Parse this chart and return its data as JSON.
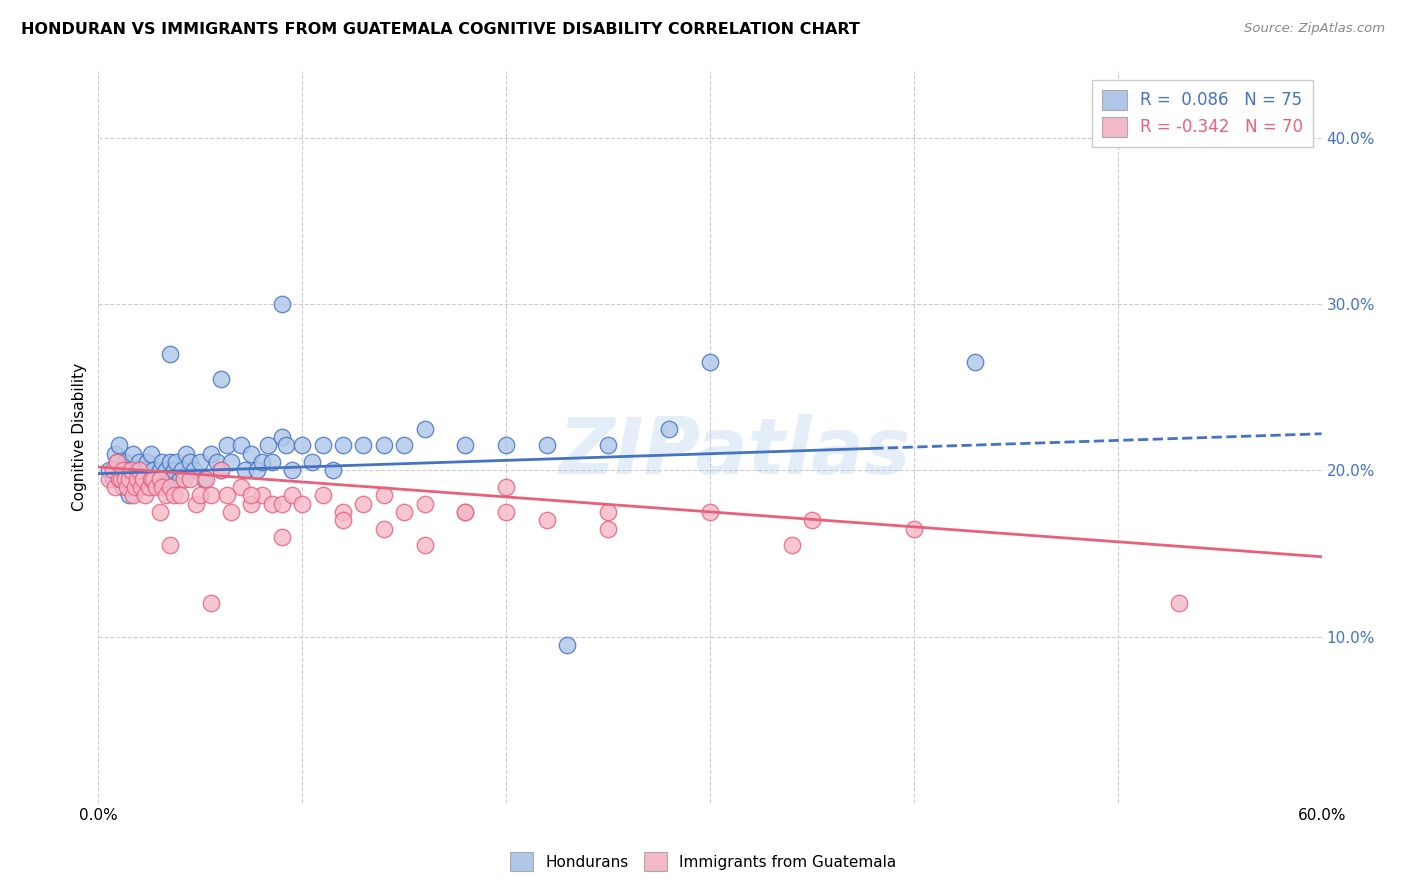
{
  "title": "HONDURAN VS IMMIGRANTS FROM GUATEMALA COGNITIVE DISABILITY CORRELATION CHART",
  "source": "Source: ZipAtlas.com",
  "ylabel": "Cognitive Disability",
  "xlim": [
    0.0,
    0.6
  ],
  "ylim": [
    0.0,
    0.44
  ],
  "xticks": [
    0.0,
    0.1,
    0.2,
    0.3,
    0.4,
    0.5,
    0.6
  ],
  "xticklabels": [
    "0.0%",
    "",
    "",
    "",
    "",
    "",
    "60.0%"
  ],
  "yticks": [
    0.1,
    0.2,
    0.3,
    0.4
  ],
  "yticklabels": [
    "10.0%",
    "20.0%",
    "30.0%",
    "40.0%"
  ],
  "blue_R": 0.086,
  "blue_N": 75,
  "pink_R": -0.342,
  "pink_N": 70,
  "blue_color": "#aec6e8",
  "pink_color": "#f4b8c8",
  "blue_line_color": "#4472C4",
  "pink_line_color": "#E8607A",
  "background_color": "#ffffff",
  "grid_color": "#cccccc",
  "watermark": "ZIPatlas",
  "legend_label_blue": "Hondurans",
  "legend_label_pink": "Immigrants from Guatemala",
  "blue_trend_x0": 0.0,
  "blue_trend_y0": 0.198,
  "blue_trend_x1": 0.6,
  "blue_trend_y1": 0.222,
  "blue_trend_solid_end": 0.38,
  "pink_trend_x0": 0.0,
  "pink_trend_y0": 0.202,
  "pink_trend_x1": 0.6,
  "pink_trend_y1": 0.148,
  "blue_scatter_x": [
    0.005,
    0.007,
    0.008,
    0.009,
    0.01,
    0.01,
    0.011,
    0.012,
    0.013,
    0.014,
    0.015,
    0.016,
    0.017,
    0.018,
    0.019,
    0.02,
    0.02,
    0.021,
    0.022,
    0.023,
    0.024,
    0.025,
    0.026,
    0.027,
    0.028,
    0.03,
    0.031,
    0.032,
    0.033,
    0.035,
    0.036,
    0.037,
    0.038,
    0.04,
    0.041,
    0.043,
    0.045,
    0.047,
    0.05,
    0.052,
    0.055,
    0.058,
    0.06,
    0.063,
    0.065,
    0.07,
    0.072,
    0.075,
    0.078,
    0.08,
    0.083,
    0.085,
    0.09,
    0.092,
    0.095,
    0.1,
    0.105,
    0.11,
    0.115,
    0.12,
    0.13,
    0.14,
    0.15,
    0.16,
    0.18,
    0.2,
    0.22,
    0.25,
    0.28,
    0.3,
    0.035,
    0.06,
    0.09,
    0.43,
    0.23
  ],
  "blue_scatter_y": [
    0.2,
    0.195,
    0.21,
    0.205,
    0.195,
    0.215,
    0.2,
    0.19,
    0.205,
    0.2,
    0.185,
    0.195,
    0.21,
    0.2,
    0.195,
    0.19,
    0.205,
    0.2,
    0.195,
    0.2,
    0.205,
    0.195,
    0.21,
    0.2,
    0.195,
    0.2,
    0.205,
    0.195,
    0.2,
    0.205,
    0.195,
    0.2,
    0.205,
    0.195,
    0.2,
    0.21,
    0.205,
    0.2,
    0.205,
    0.195,
    0.21,
    0.205,
    0.2,
    0.215,
    0.205,
    0.215,
    0.2,
    0.21,
    0.2,
    0.205,
    0.215,
    0.205,
    0.22,
    0.215,
    0.2,
    0.215,
    0.205,
    0.215,
    0.2,
    0.215,
    0.215,
    0.215,
    0.215,
    0.225,
    0.215,
    0.215,
    0.215,
    0.215,
    0.225,
    0.265,
    0.27,
    0.255,
    0.3,
    0.265,
    0.095
  ],
  "pink_scatter_x": [
    0.005,
    0.007,
    0.008,
    0.009,
    0.01,
    0.011,
    0.012,
    0.013,
    0.014,
    0.015,
    0.016,
    0.017,
    0.018,
    0.019,
    0.02,
    0.021,
    0.022,
    0.023,
    0.025,
    0.026,
    0.027,
    0.028,
    0.03,
    0.031,
    0.033,
    0.035,
    0.037,
    0.04,
    0.042,
    0.045,
    0.048,
    0.05,
    0.053,
    0.055,
    0.06,
    0.063,
    0.065,
    0.07,
    0.075,
    0.08,
    0.085,
    0.09,
    0.095,
    0.1,
    0.11,
    0.12,
    0.13,
    0.14,
    0.15,
    0.16,
    0.18,
    0.2,
    0.22,
    0.25,
    0.3,
    0.35,
    0.12,
    0.14,
    0.18,
    0.25,
    0.4,
    0.055,
    0.03,
    0.075,
    0.035,
    0.09,
    0.16,
    0.2,
    0.34,
    0.53
  ],
  "pink_scatter_y": [
    0.195,
    0.2,
    0.19,
    0.205,
    0.195,
    0.195,
    0.2,
    0.195,
    0.19,
    0.195,
    0.2,
    0.185,
    0.19,
    0.195,
    0.2,
    0.19,
    0.195,
    0.185,
    0.19,
    0.195,
    0.195,
    0.19,
    0.195,
    0.19,
    0.185,
    0.19,
    0.185,
    0.185,
    0.195,
    0.195,
    0.18,
    0.185,
    0.195,
    0.185,
    0.2,
    0.185,
    0.175,
    0.19,
    0.18,
    0.185,
    0.18,
    0.18,
    0.185,
    0.18,
    0.185,
    0.175,
    0.18,
    0.185,
    0.175,
    0.18,
    0.175,
    0.175,
    0.17,
    0.175,
    0.175,
    0.17,
    0.17,
    0.165,
    0.175,
    0.165,
    0.165,
    0.12,
    0.175,
    0.185,
    0.155,
    0.16,
    0.155,
    0.19,
    0.155,
    0.12
  ]
}
